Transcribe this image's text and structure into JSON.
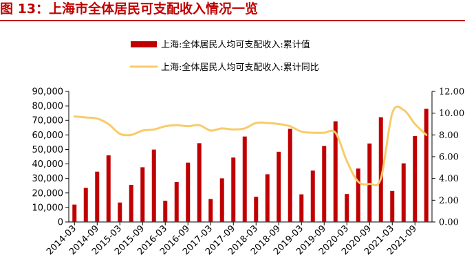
{
  "figure_title": "图 13：上海市全体居民可支配收入情况一览",
  "colors": {
    "bar": "#c00000",
    "line": "#f8cb6a",
    "title": "#c00000",
    "axis": "#000000"
  },
  "chart_data": {
    "type": "bar",
    "title": "",
    "categories": [
      "2014-03",
      "2014-06",
      "2014-09",
      "2014-12",
      "2015-03",
      "2015-06",
      "2015-09",
      "2015-12",
      "2016-03",
      "2016-06",
      "2016-09",
      "2016-12",
      "2017-03",
      "2017-06",
      "2017-09",
      "2017-12",
      "2018-03",
      "2018-06",
      "2018-09",
      "2018-12",
      "2019-03",
      "2019-06",
      "2019-09",
      "2019-12",
      "2020-03",
      "2020-06",
      "2020-09",
      "2020-12",
      "2021-03",
      "2021-06",
      "2021-09",
      "2021-12"
    ],
    "x_tick_labels": [
      "2014-03",
      "2014-09",
      "2015-03",
      "2015-09",
      "2016-03",
      "2016-09",
      "2017-03",
      "2017-09",
      "2018-03",
      "2018-09",
      "2019-03",
      "2019-09",
      "2020-03",
      "2020-09",
      "2021-03",
      "2021-09"
    ],
    "series": [
      {
        "name": "上海:全体居民人均可支配收入:累计值",
        "type": "bar",
        "axis": "left",
        "values": [
          12000,
          23500,
          34700,
          45900,
          13400,
          25600,
          37700,
          49900,
          14600,
          27500,
          40900,
          54300,
          15800,
          30100,
          44400,
          58900,
          17300,
          32900,
          48400,
          64200,
          19000,
          35400,
          52400,
          69400,
          19300,
          36800,
          54100,
          72200,
          21400,
          40400,
          59200,
          78000
        ]
      },
      {
        "name": "上海:全体居民人均可支配收入:累计同比",
        "type": "line",
        "axis": "right",
        "values": [
          9.7,
          9.6,
          9.5,
          9.0,
          8.1,
          8.0,
          8.4,
          8.5,
          8.8,
          8.9,
          8.8,
          8.9,
          8.4,
          8.6,
          8.5,
          8.6,
          9.1,
          9.1,
          9.0,
          8.8,
          8.3,
          8.2,
          8.2,
          8.2,
          5.6,
          3.7,
          3.5,
          4.0,
          10.0,
          10.3,
          9.0,
          8.0
        ]
      }
    ],
    "y_left": {
      "min": 0,
      "max": 90000,
      "step": 10000,
      "tick_labels": [
        "0",
        "10,000",
        "20,000",
        "30,000",
        "40,000",
        "50,000",
        "60,000",
        "70,000",
        "80,000",
        "90,000"
      ]
    },
    "y_right": {
      "min": 0,
      "max": 12,
      "step": 2,
      "tick_labels": [
        "0.00",
        "2.00",
        "4.00",
        "6.00",
        "8.00",
        "10.00",
        "12.00"
      ]
    },
    "legend_position": "top-center",
    "grid": false
  }
}
